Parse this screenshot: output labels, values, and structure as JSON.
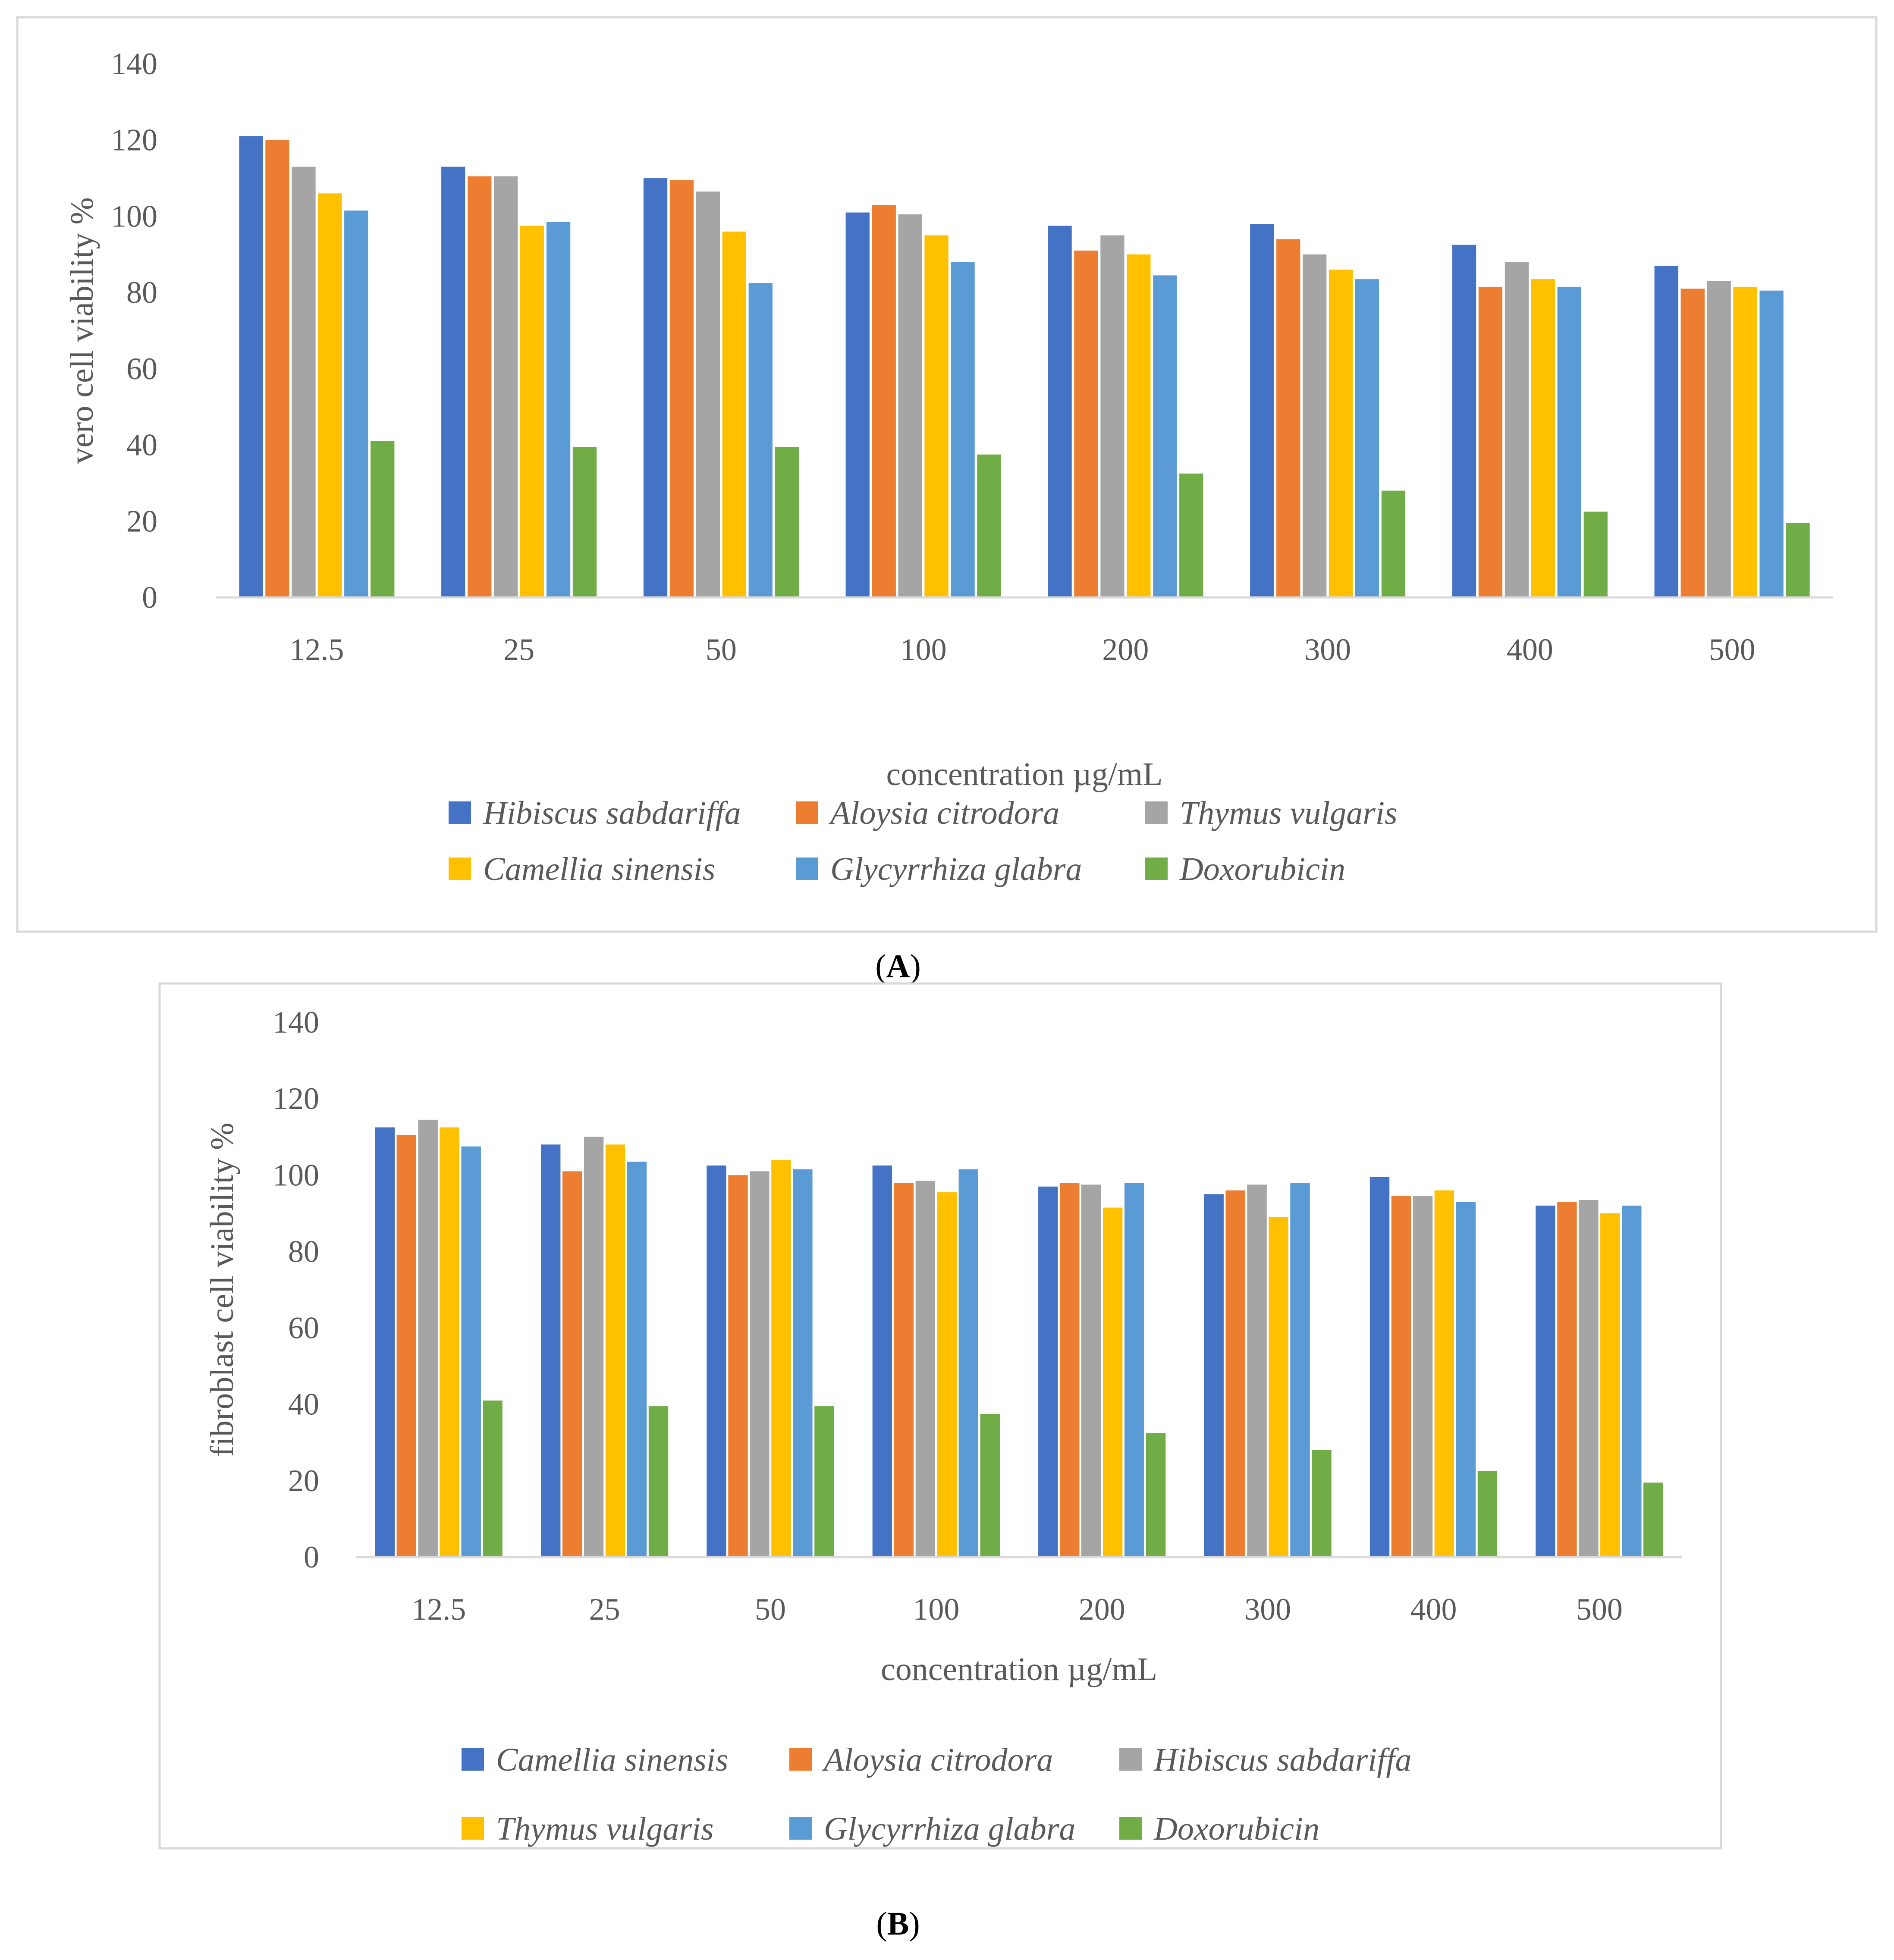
{
  "chart_data": [
    {
      "panel_label": "A",
      "type": "bar",
      "title": "",
      "ylabel": "vero cell viability %",
      "xlabel": "concentration µg/mL",
      "ylim": [
        0,
        140
      ],
      "yticks": [
        "0",
        "20",
        "40",
        "60",
        "80",
        "100",
        "120",
        "140"
      ],
      "grid": false,
      "legend_position": "bottom",
      "categories": [
        "12.5",
        "25",
        "50",
        "100",
        "200",
        "300",
        "400",
        "500"
      ],
      "series": [
        {
          "name": "Hibiscus sabdariffa",
          "color": "#4472C4",
          "values": [
            121,
            113,
            110,
            101,
            97.5,
            98,
            92.5,
            87
          ]
        },
        {
          "name": "Aloysia citrodora",
          "color": "#ED7D31",
          "values": [
            120,
            110.5,
            109.5,
            103,
            91,
            94,
            81.5,
            81
          ]
        },
        {
          "name": "Thymus vulgaris",
          "color": "#A5A5A5",
          "values": [
            113,
            110.5,
            106.5,
            100.5,
            95,
            90,
            88,
            83
          ]
        },
        {
          "name": "Camellia sinensis",
          "color": "#FFC000",
          "values": [
            106,
            97.5,
            96,
            95,
            90,
            86,
            83.5,
            81.5
          ]
        },
        {
          "name": "Glycyrrhiza glabra",
          "color": "#5B9BD5",
          "values": [
            101.5,
            98.5,
            82.5,
            88,
            84.5,
            83.5,
            81.5,
            80.5
          ]
        },
        {
          "name": "Doxorubicin",
          "color": "#70AD47",
          "values": [
            41,
            39.5,
            39.5,
            37.5,
            32.5,
            28,
            22.5,
            19.5
          ]
        }
      ]
    },
    {
      "panel_label": "B",
      "type": "bar",
      "title": "",
      "ylabel": "fibroblast cell viability %",
      "xlabel": "concentration µg/mL",
      "ylim": [
        0,
        140
      ],
      "yticks": [
        "0",
        "20",
        "40",
        "60",
        "80",
        "100",
        "120",
        "140"
      ],
      "grid": false,
      "legend_position": "bottom",
      "categories": [
        "12.5",
        "25",
        "50",
        "100",
        "200",
        "300",
        "400",
        "500"
      ],
      "series": [
        {
          "name": "Camellia sinensis",
          "color": "#4472C4",
          "values": [
            112.5,
            108,
            102.5,
            102.5,
            97,
            95,
            99.5,
            92
          ]
        },
        {
          "name": "Aloysia citrodora",
          "color": "#ED7D31",
          "values": [
            110.5,
            101,
            100,
            98,
            98,
            96,
            94.5,
            93
          ]
        },
        {
          "name": "Hibiscus sabdariffa",
          "color": "#A5A5A5",
          "values": [
            114.5,
            110,
            101,
            98.5,
            97.5,
            97.5,
            94.5,
            93.5
          ]
        },
        {
          "name": "Thymus vulgaris",
          "color": "#FFC000",
          "values": [
            112.5,
            108,
            104,
            95.5,
            91.5,
            89,
            96,
            90
          ]
        },
        {
          "name": "Glycyrrhiza glabra",
          "color": "#5B9BD5",
          "values": [
            107.5,
            103.5,
            101.5,
            101.5,
            98,
            98,
            93,
            92
          ]
        },
        {
          "name": "Doxorubicin",
          "color": "#70AD47",
          "values": [
            41,
            39.5,
            39.5,
            37.5,
            32.5,
            28,
            22.5,
            19.5
          ]
        }
      ]
    }
  ]
}
